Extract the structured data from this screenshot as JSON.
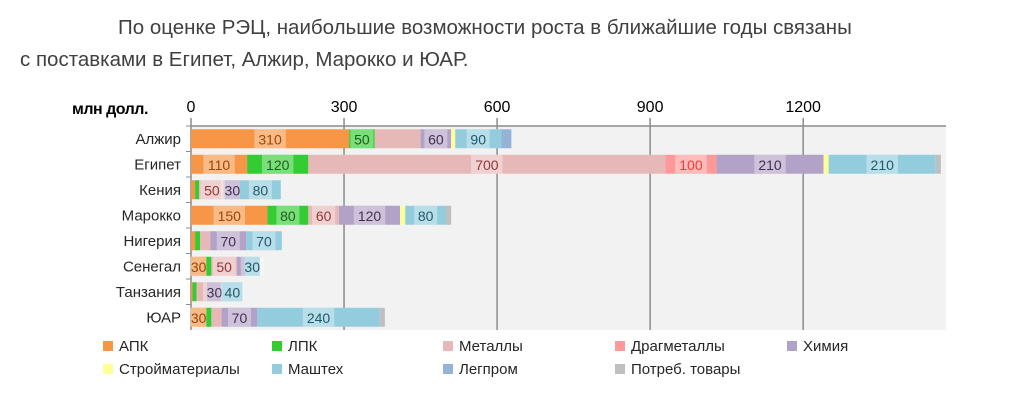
{
  "heading": {
    "line1": "По оценке РЭЦ, наибольшие возможности роста в ближайшие годы связаны",
    "line2": "с поставками в Египет, Алжир, Марокко и ЮАР."
  },
  "chart_data": {
    "type": "bar",
    "orientation": "horizontal",
    "stacked": true,
    "unit_label": "млн долл.",
    "xlim": [
      0,
      1480
    ],
    "xticks": [
      0,
      300,
      600,
      900,
      1200
    ],
    "grid": true,
    "legend_position": "bottom",
    "categories": [
      "Алжир",
      "Египет",
      "Кения",
      "Марокко",
      "Нигерия",
      "Сенегал",
      "Танзания",
      "ЮАР"
    ],
    "series": [
      {
        "name": "АПК",
        "color": "#F79646",
        "values": [
          310,
          110,
          8,
          150,
          8,
          30,
          3,
          30
        ],
        "labels": [
          310,
          110,
          null,
          150,
          null,
          30,
          null,
          30
        ]
      },
      {
        "name": "ЛПК",
        "color": "#33CC33",
        "values": [
          50,
          120,
          8,
          80,
          10,
          10,
          8,
          10
        ],
        "labels": [
          50,
          120,
          null,
          80,
          null,
          null,
          null,
          null
        ]
      },
      {
        "name": "Металлы",
        "color": "#E6B9B8",
        "values": [
          90,
          700,
          50,
          60,
          20,
          50,
          20,
          20
        ],
        "labels": [
          null,
          700,
          50,
          60,
          null,
          50,
          null,
          null
        ]
      },
      {
        "name": "Драгметаллы",
        "color": "#FF9999",
        "values": [
          0,
          100,
          0,
          0,
          0,
          0,
          0,
          0
        ],
        "labels": [
          null,
          100,
          null,
          null,
          null,
          null,
          null,
          null
        ]
      },
      {
        "name": "Химия",
        "color": "#B3A2C7",
        "values": [
          60,
          210,
          30,
          120,
          70,
          15,
          30,
          70
        ],
        "labels": [
          60,
          210,
          30,
          120,
          70,
          null,
          30,
          70
        ]
      },
      {
        "name": "Стройматериалы",
        "color": "#FFFF99",
        "values": [
          8,
          10,
          0,
          10,
          0,
          0,
          0,
          0
        ],
        "labels": [
          null,
          null,
          null,
          null,
          null,
          null,
          null,
          null
        ]
      },
      {
        "name": "Маштех",
        "color": "#93CDDD",
        "values": [
          90,
          210,
          80,
          80,
          70,
          30,
          40,
          240
        ],
        "labels": [
          90,
          210,
          80,
          80,
          70,
          30,
          40,
          240
        ]
      },
      {
        "name": "Легпром",
        "color": "#95B3D7",
        "values": [
          20,
          0,
          0,
          0,
          0,
          0,
          0,
          0
        ],
        "labels": [
          null,
          null,
          null,
          null,
          null,
          null,
          null,
          null
        ]
      },
      {
        "name": "Потреб. товары",
        "color": "#BFBFBF",
        "values": [
          0,
          10,
          0,
          10,
          0,
          0,
          0,
          10
        ],
        "labels": [
          null,
          null,
          null,
          null,
          null,
          null,
          null,
          null
        ]
      }
    ],
    "label_colors": {
      "АПК": "#984807",
      "ЛПК": "#1E5E1E",
      "Металлы": "#953735",
      "Драгметаллы": "#FF3333",
      "Химия": "#403151",
      "Маштех": "#215968"
    }
  }
}
